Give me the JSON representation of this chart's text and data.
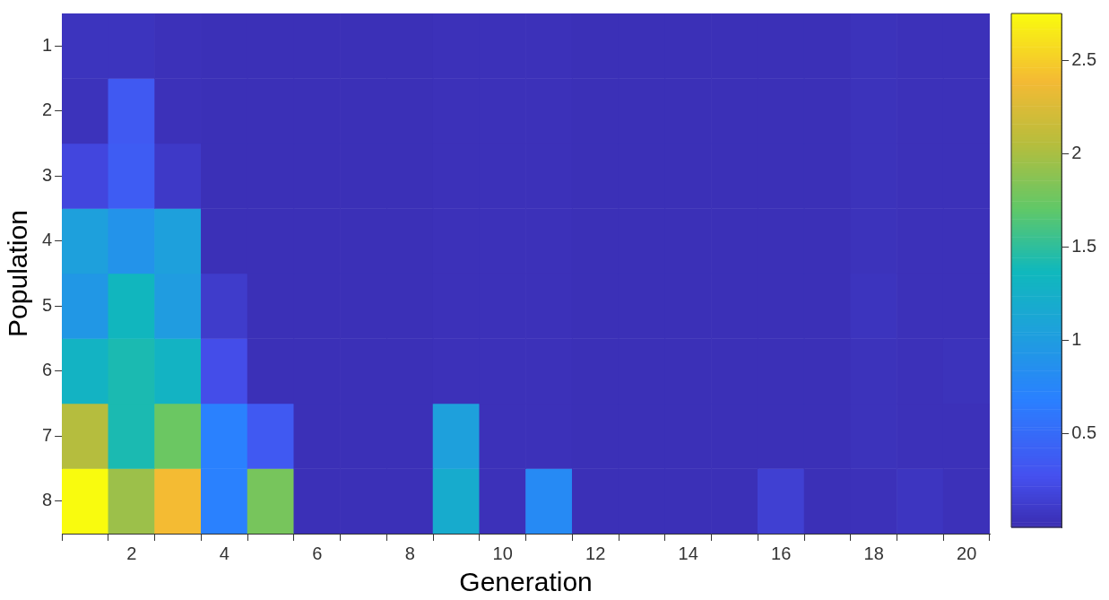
{
  "chart_data": {
    "type": "heatmap",
    "xlabel": "Generation",
    "ylabel": "Population",
    "categories": [
      null,
      "2",
      null,
      "4",
      null,
      "6",
      null,
      "8",
      null,
      "10",
      null,
      "12",
      null,
      "14",
      null,
      "16",
      null,
      "18",
      null,
      "20"
    ],
    "y_categories": [
      "1",
      "2",
      "3",
      "4",
      "5",
      "6",
      "7",
      "8"
    ],
    "cells": [
      [
        0.06,
        0.06,
        0.04,
        0.03,
        0.03,
        0.03,
        0.03,
        0.03,
        0.04,
        0.04,
        0.04,
        0.03,
        0.03,
        0.03,
        0.03,
        0.03,
        0.03,
        0.05,
        0.04,
        0.04
      ],
      [
        0.05,
        0.35,
        0.04,
        0.03,
        0.03,
        0.03,
        0.03,
        0.03,
        0.04,
        0.04,
        0.04,
        0.03,
        0.03,
        0.03,
        0.03,
        0.03,
        0.03,
        0.05,
        0.04,
        0.04
      ],
      [
        0.2,
        0.38,
        0.1,
        0.03,
        0.03,
        0.03,
        0.03,
        0.03,
        0.04,
        0.04,
        0.04,
        0.03,
        0.03,
        0.03,
        0.03,
        0.03,
        0.03,
        0.05,
        0.04,
        0.04
      ],
      [
        1.05,
        0.9,
        1.05,
        0.03,
        0.03,
        0.03,
        0.03,
        0.03,
        0.04,
        0.04,
        0.04,
        0.03,
        0.03,
        0.03,
        0.03,
        0.03,
        0.03,
        0.05,
        0.04,
        0.04
      ],
      [
        0.95,
        1.35,
        1.0,
        0.12,
        0.03,
        0.03,
        0.03,
        0.03,
        0.04,
        0.04,
        0.04,
        0.03,
        0.03,
        0.03,
        0.03,
        0.03,
        0.03,
        0.06,
        0.04,
        0.04
      ],
      [
        1.3,
        1.42,
        1.3,
        0.25,
        0.03,
        0.03,
        0.03,
        0.03,
        0.04,
        0.04,
        0.04,
        0.03,
        0.03,
        0.03,
        0.03,
        0.03,
        0.03,
        0.05,
        0.04,
        0.05
      ],
      [
        2.05,
        1.42,
        1.75,
        0.7,
        0.35,
        0.03,
        0.03,
        0.03,
        1.05,
        0.04,
        0.04,
        0.03,
        0.03,
        0.03,
        0.03,
        0.03,
        0.03,
        0.05,
        0.04,
        0.04
      ],
      [
        2.75,
        1.95,
        2.4,
        0.7,
        1.8,
        0.03,
        0.03,
        0.03,
        1.2,
        0.04,
        0.8,
        0.03,
        0.03,
        0.03,
        0.03,
        0.15,
        0.03,
        0.04,
        0.07,
        0.04
      ]
    ],
    "clim": [
      0,
      2.75
    ],
    "cticks": [
      0.5,
      1,
      1.5,
      2,
      2.5
    ]
  }
}
